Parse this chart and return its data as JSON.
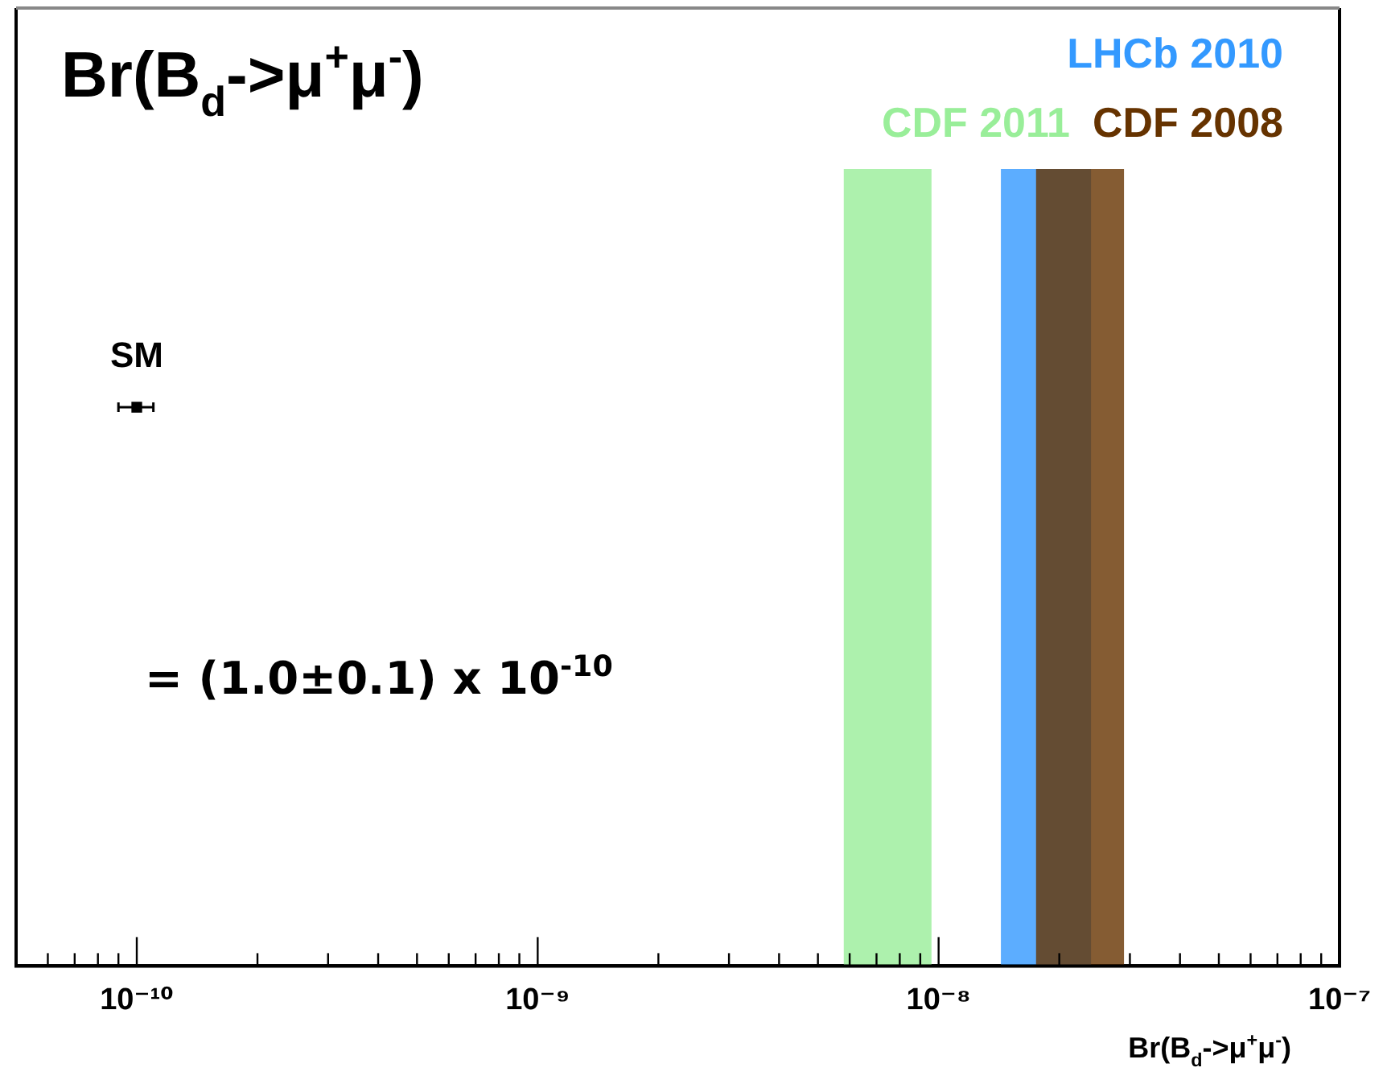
{
  "chart_data": {
    "type": "scatter",
    "title": "Br(B$_{d}$->μ$^{+}$μ$^{-}$)",
    "xlabel": "Br(B$_{d}$->μ$^{+}$μ$^{-}$)",
    "log": "x",
    "orientation": "horizontal",
    "categories": [
      null
    ],
    "legend": false,
    "grid": false,
    "marker": "square",
    "xlim": [
      5e-11,
      1e-07
    ],
    "xticks": [
      {
        "value": 6e-11,
        "label": null
      },
      {
        "value": 7e-11,
        "label": null
      },
      {
        "value": 8e-11,
        "label": null
      },
      {
        "value": 9e-11,
        "label": null
      },
      {
        "value": 1e-10,
        "label": "10⁻¹⁰"
      },
      {
        "value": 2e-10,
        "label": null
      },
      {
        "value": 3e-10,
        "label": null
      },
      {
        "value": 4e-10,
        "label": null
      },
      {
        "value": 5e-10,
        "label": null
      },
      {
        "value": 6e-10,
        "label": null
      },
      {
        "value": 7e-10,
        "label": null
      },
      {
        "value": 8e-10,
        "label": null
      },
      {
        "value": 9e-10,
        "label": null
      },
      {
        "value": 1e-09,
        "label": "10⁻⁹"
      },
      {
        "value": 2e-09,
        "label": null
      },
      {
        "value": 3e-09,
        "label": null
      },
      {
        "value": 4e-09,
        "label": null
      },
      {
        "value": 5e-09,
        "label": null
      },
      {
        "value": 6e-09,
        "label": null
      },
      {
        "value": 7e-09,
        "label": null
      },
      {
        "value": 8e-09,
        "label": null
      },
      {
        "value": 9e-09,
        "label": null
      },
      {
        "value": 1e-08,
        "label": "10⁻⁸"
      },
      {
        "value": 2e-08,
        "label": null
      },
      {
        "value": 3e-08,
        "label": null
      },
      {
        "value": 4e-08,
        "label": null
      },
      {
        "value": 5e-08,
        "label": null
      },
      {
        "value": 6e-08,
        "label": null
      },
      {
        "value": 7e-08,
        "label": null
      },
      {
        "value": 8e-08,
        "label": null
      },
      {
        "value": 9e-08,
        "label": null
      },
      {
        "value": 1e-07,
        "label": "10⁻⁷"
      }
    ],
    "series": [
      {
        "color": "#000000",
        "values": [
          1e-10
        ],
        "errors": [
          1e-11
        ]
      }
    ],
    "bands": [
      {
        "axis": "x",
        "from": 5.8e-09,
        "to": 9.6e-09,
        "label": "CDF 2011",
        "color": "#99ee99"
      },
      {
        "axis": "x",
        "from": 1.43e-08,
        "to": 2.4e-08,
        "label": "LHCb 2010",
        "color": "#3399ff"
      },
      {
        "axis": "x",
        "from": 1.75e-08,
        "to": 2.9e-08,
        "label": "CDF 2008",
        "color": "#663300"
      }
    ],
    "annotations": [
      "SM",
      "= (1.0±0.1) x 10$^{-10}$"
    ]
  }
}
